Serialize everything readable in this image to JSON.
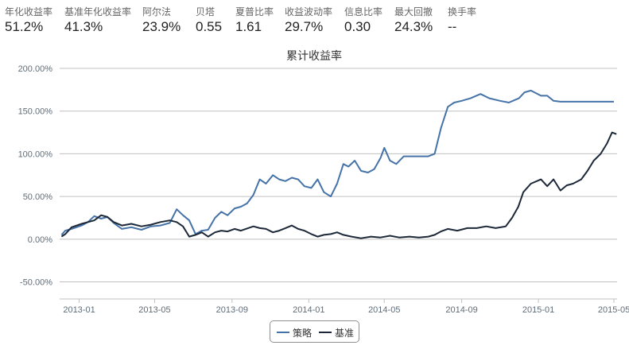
{
  "stats": [
    {
      "label": "年化收益率",
      "value": "51.2%"
    },
    {
      "label": "基准年化收益率",
      "value": "41.3%"
    },
    {
      "label": "阿尔法",
      "value": "23.9%"
    },
    {
      "label": "贝塔",
      "value": "0.55"
    },
    {
      "label": "夏普比率",
      "value": "1.61"
    },
    {
      "label": "收益波动率",
      "value": "29.7%"
    },
    {
      "label": "信息比率",
      "value": "0.30"
    },
    {
      "label": "最大回撤",
      "value": "24.3%"
    },
    {
      "label": "换手率",
      "value": "--"
    }
  ],
  "colors": {
    "strategy": "#4572a7",
    "benchmark": "#1c2838",
    "grid": "#c0c0c0"
  },
  "chart_data": {
    "type": "line",
    "title": "累计收益率",
    "y_ticks": [
      "-50.00%",
      "0.00%",
      "50.00%",
      "100.00%",
      "150.00%",
      "200.00%"
    ],
    "ylim": [
      -70,
      200
    ],
    "x_ticks": [
      "2013-01",
      "2013-05",
      "2013-09",
      "2014-01",
      "2014-05",
      "2014-09",
      "2015-01",
      "2015-05"
    ],
    "x_range": [
      "2012-12-01",
      "2015-05-06"
    ],
    "legend_position": "bottom-center",
    "series": [
      {
        "name": "策略",
        "color": "#4572a7",
        "points": [
          [
            "2012-12-04",
            5
          ],
          [
            "2012-12-10",
            10
          ],
          [
            "2012-12-20",
            12
          ],
          [
            "2013-01-05",
            16
          ],
          [
            "2013-01-15",
            20
          ],
          [
            "2013-01-25",
            27
          ],
          [
            "2013-02-05",
            24
          ],
          [
            "2013-02-15",
            26
          ],
          [
            "2013-02-25",
            19
          ],
          [
            "2013-03-10",
            12
          ],
          [
            "2013-03-25",
            14
          ],
          [
            "2013-04-10",
            11
          ],
          [
            "2013-04-25",
            15
          ],
          [
            "2013-05-10",
            16
          ],
          [
            "2013-05-25",
            19
          ],
          [
            "2013-06-05",
            35
          ],
          [
            "2013-06-15",
            28
          ],
          [
            "2013-06-25",
            22
          ],
          [
            "2013-07-05",
            6
          ],
          [
            "2013-07-15",
            10
          ],
          [
            "2013-07-25",
            11
          ],
          [
            "2013-08-05",
            25
          ],
          [
            "2013-08-15",
            32
          ],
          [
            "2013-08-25",
            28
          ],
          [
            "2013-09-05",
            36
          ],
          [
            "2013-09-15",
            38
          ],
          [
            "2013-09-25",
            42
          ],
          [
            "2013-10-05",
            52
          ],
          [
            "2013-10-15",
            70
          ],
          [
            "2013-10-25",
            65
          ],
          [
            "2013-11-05",
            75
          ],
          [
            "2013-11-15",
            70
          ],
          [
            "2013-11-25",
            68
          ],
          [
            "2013-12-05",
            72
          ],
          [
            "2013-12-15",
            70
          ],
          [
            "2013-12-25",
            62
          ],
          [
            "2014-01-05",
            60
          ],
          [
            "2014-01-15",
            70
          ],
          [
            "2014-01-25",
            55
          ],
          [
            "2014-02-05",
            50
          ],
          [
            "2014-02-15",
            65
          ],
          [
            "2014-02-25",
            88
          ],
          [
            "2014-03-05",
            85
          ],
          [
            "2014-03-15",
            92
          ],
          [
            "2014-03-25",
            80
          ],
          [
            "2014-04-05",
            78
          ],
          [
            "2014-04-15",
            82
          ],
          [
            "2014-04-25",
            95
          ],
          [
            "2014-05-01",
            107
          ],
          [
            "2014-05-10",
            92
          ],
          [
            "2014-05-20",
            88
          ],
          [
            "2014-06-01",
            97
          ],
          [
            "2014-07-10",
            97
          ],
          [
            "2014-07-20",
            100
          ],
          [
            "2014-07-30",
            130
          ],
          [
            "2014-08-10",
            155
          ],
          [
            "2014-08-20",
            160
          ],
          [
            "2014-09-01",
            162
          ],
          [
            "2014-09-15",
            165
          ],
          [
            "2014-10-01",
            170
          ],
          [
            "2014-10-15",
            165
          ],
          [
            "2014-11-01",
            162
          ],
          [
            "2014-11-15",
            160
          ],
          [
            "2014-12-01",
            165
          ],
          [
            "2014-12-10",
            172
          ],
          [
            "2014-12-20",
            174
          ],
          [
            "2015-01-05",
            168
          ],
          [
            "2015-01-15",
            168
          ],
          [
            "2015-01-25",
            162
          ],
          [
            "2015-02-05",
            161
          ],
          [
            "2015-03-01",
            161
          ],
          [
            "2015-04-01",
            161
          ],
          [
            "2015-05-01",
            161
          ]
        ]
      },
      {
        "name": "基准",
        "color": "#1c2838",
        "points": [
          [
            "2012-12-04",
            3
          ],
          [
            "2012-12-10",
            6
          ],
          [
            "2012-12-20",
            14
          ],
          [
            "2013-01-05",
            18
          ],
          [
            "2013-01-15",
            20
          ],
          [
            "2013-01-25",
            22
          ],
          [
            "2013-02-05",
            28
          ],
          [
            "2013-02-15",
            26
          ],
          [
            "2013-02-25",
            20
          ],
          [
            "2013-03-10",
            16
          ],
          [
            "2013-03-25",
            18
          ],
          [
            "2013-04-10",
            15
          ],
          [
            "2013-04-25",
            17
          ],
          [
            "2013-05-10",
            20
          ],
          [
            "2013-05-25",
            22
          ],
          [
            "2013-06-05",
            20
          ],
          [
            "2013-06-15",
            15
          ],
          [
            "2013-06-25",
            3
          ],
          [
            "2013-07-05",
            5
          ],
          [
            "2013-07-15",
            8
          ],
          [
            "2013-07-25",
            3
          ],
          [
            "2013-08-05",
            8
          ],
          [
            "2013-08-15",
            10
          ],
          [
            "2013-08-25",
            9
          ],
          [
            "2013-09-05",
            12
          ],
          [
            "2013-09-15",
            10
          ],
          [
            "2013-10-05",
            15
          ],
          [
            "2013-10-15",
            13
          ],
          [
            "2013-10-25",
            12
          ],
          [
            "2013-11-05",
            8
          ],
          [
            "2013-11-15",
            10
          ],
          [
            "2013-11-25",
            13
          ],
          [
            "2013-12-05",
            16
          ],
          [
            "2013-12-15",
            12
          ],
          [
            "2013-12-25",
            10
          ],
          [
            "2014-01-05",
            6
          ],
          [
            "2014-01-15",
            3
          ],
          [
            "2014-01-25",
            5
          ],
          [
            "2014-02-05",
            6
          ],
          [
            "2014-02-15",
            8
          ],
          [
            "2014-02-25",
            5
          ],
          [
            "2014-03-10",
            3
          ],
          [
            "2014-03-25",
            1
          ],
          [
            "2014-04-10",
            3
          ],
          [
            "2014-04-25",
            2
          ],
          [
            "2014-05-10",
            4
          ],
          [
            "2014-05-25",
            2
          ],
          [
            "2014-06-10",
            3
          ],
          [
            "2014-06-25",
            2
          ],
          [
            "2014-07-10",
            3
          ],
          [
            "2014-07-20",
            5
          ],
          [
            "2014-07-30",
            9
          ],
          [
            "2014-08-10",
            12
          ],
          [
            "2014-08-25",
            10
          ],
          [
            "2014-09-10",
            13
          ],
          [
            "2014-09-25",
            13
          ],
          [
            "2014-10-10",
            15
          ],
          [
            "2014-10-25",
            13
          ],
          [
            "2014-11-10",
            15
          ],
          [
            "2014-11-20",
            25
          ],
          [
            "2014-11-30",
            38
          ],
          [
            "2014-12-08",
            55
          ],
          [
            "2014-12-20",
            65
          ],
          [
            "2015-01-05",
            70
          ],
          [
            "2015-01-15",
            62
          ],
          [
            "2015-01-25",
            70
          ],
          [
            "2015-02-05",
            57
          ],
          [
            "2015-02-15",
            63
          ],
          [
            "2015-02-25",
            65
          ],
          [
            "2015-03-10",
            70
          ],
          [
            "2015-03-20",
            80
          ],
          [
            "2015-03-30",
            92
          ],
          [
            "2015-04-10",
            100
          ],
          [
            "2015-04-20",
            112
          ],
          [
            "2015-04-28",
            125
          ],
          [
            "2015-05-05",
            123
          ]
        ]
      }
    ]
  }
}
